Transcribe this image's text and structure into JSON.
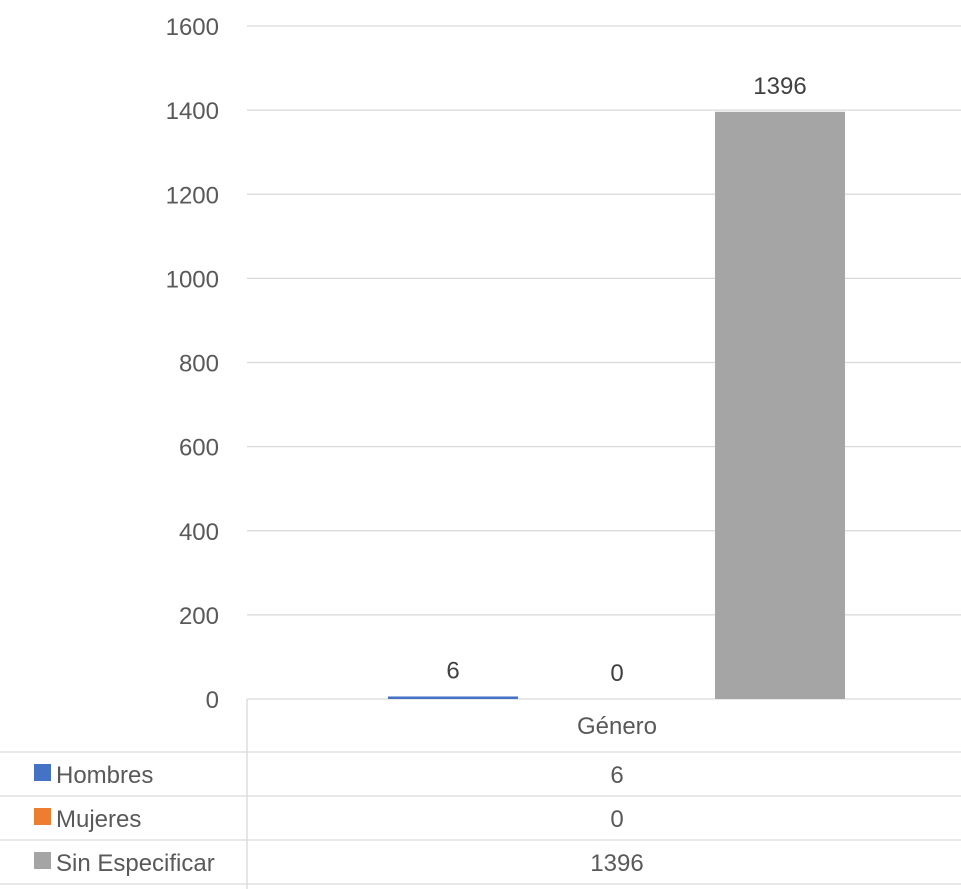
{
  "chart_data": {
    "type": "bar",
    "categories": [
      "Género"
    ],
    "series": [
      {
        "name": "Hombres",
        "values": [
          6
        ],
        "color": "#4472C4"
      },
      {
        "name": "Mujeres",
        "values": [
          0
        ],
        "color": "#ED7D31"
      },
      {
        "name": "Sin Especificar",
        "values": [
          1396
        ],
        "color": "#A5A5A5"
      }
    ],
    "ylim": [
      0,
      1600
    ],
    "yticks": [
      0,
      200,
      400,
      600,
      800,
      1000,
      1200,
      1400,
      1600
    ],
    "grid": true,
    "data_labels": true,
    "legend": "data-table"
  }
}
